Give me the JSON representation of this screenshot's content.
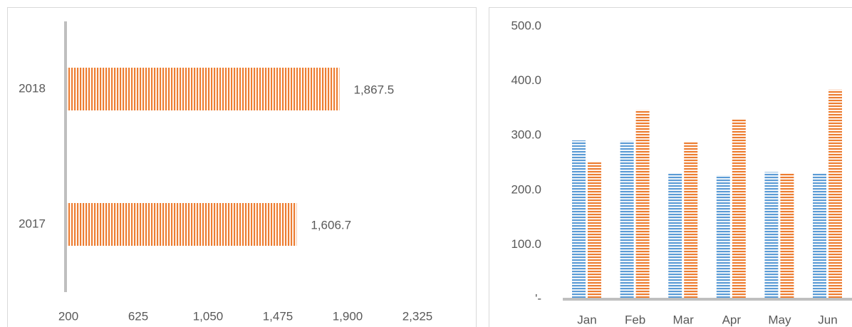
{
  "chart_data": [
    {
      "type": "hbar",
      "categories": [
        "2017",
        "2018"
      ],
      "values": [
        1606.7,
        1867.5
      ],
      "value_labels": [
        "1,606.7",
        "1,867.5"
      ],
      "color": "#ed7d31",
      "xlim": [
        200,
        2325
      ],
      "xticks": [
        200,
        625,
        {
          "value": 1050,
          "label": "1,050"
        },
        {
          "value": 1475,
          "label": "1,475"
        },
        {
          "value": 1900,
          "label": "1,900"
        },
        {
          "value": 2325,
          "label": "2,325"
        }
      ]
    },
    {
      "type": "bar",
      "categories": [
        "Jan",
        "Feb",
        "Mar",
        "Apr",
        "May",
        "Jun"
      ],
      "series": [
        {
          "color": "#5b9bd5",
          "values": [
            291,
            290,
            231,
            227,
            233,
            230
          ]
        },
        {
          "color": "#ed7d31",
          "values": [
            252,
            347,
            289,
            331,
            231,
            384
          ]
        }
      ],
      "ylim": [
        0,
        500
      ],
      "yticks": [
        {
          "value": 0,
          "label": "'-"
        },
        {
          "value": 100,
          "label": "100.0"
        },
        {
          "value": 200,
          "label": "200.0"
        },
        {
          "value": 300,
          "label": "300.0"
        },
        {
          "value": 400,
          "label": "400.0"
        },
        {
          "value": 500,
          "label": "500.0"
        }
      ]
    }
  ]
}
